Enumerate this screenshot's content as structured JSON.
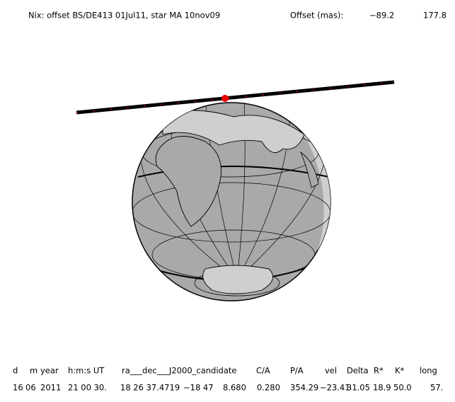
{
  "title": "Nix: offset BS/DE413 01Jul11, star MA 10nov09",
  "offset_label": "Offset (mas):",
  "offset_values": [
    "−89.2",
    "177.8"
  ],
  "table": {
    "header": [
      "d",
      "m",
      "year",
      "h:m:s UT",
      "ra___dec___J2000_candidate",
      "C/A",
      "P/A",
      "vel",
      "Delta",
      "R*",
      "K*",
      "long"
    ],
    "row": [
      "16",
      "06",
      "2011",
      "21 00 30.",
      "18 26 37.4719",
      "−18 47",
      "8.680",
      "0.280",
      "354.29",
      "−23.41",
      "31.05",
      "18.9",
      "50.0",
      "57."
    ]
  }
}
